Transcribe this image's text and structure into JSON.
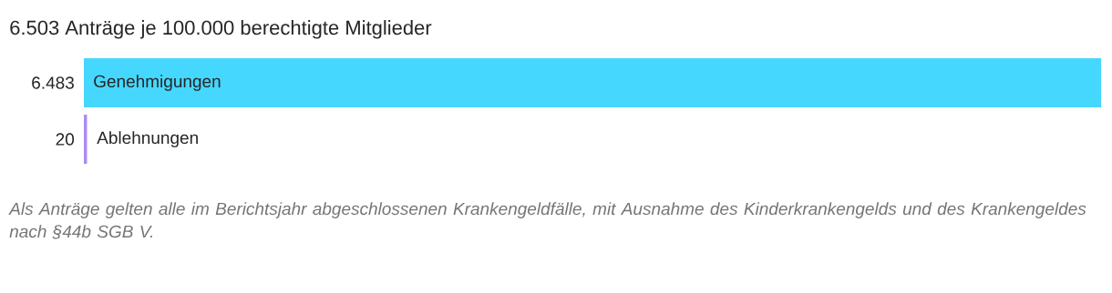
{
  "chart_data": {
    "type": "bar",
    "orientation": "horizontal",
    "title": "6.503 Anträge je 100.000 berechtigte Mitglieder",
    "categories": [
      "Genehmigungen",
      "Ablehnungen"
    ],
    "values": [
      6483,
      20
    ],
    "colors": [
      "#45d7fe",
      "#a98bf5"
    ],
    "value_labels": [
      "6.483",
      "20"
    ],
    "xlim": [
      0,
      6483
    ],
    "annotations": [
      "Als Anträge gelten alle im Berichtsjahr abgeschlossenen Krankengeldfälle, mit Ausnahme des Kinderkrankengelds und des Krankengeldes nach §44b SGB V."
    ]
  }
}
